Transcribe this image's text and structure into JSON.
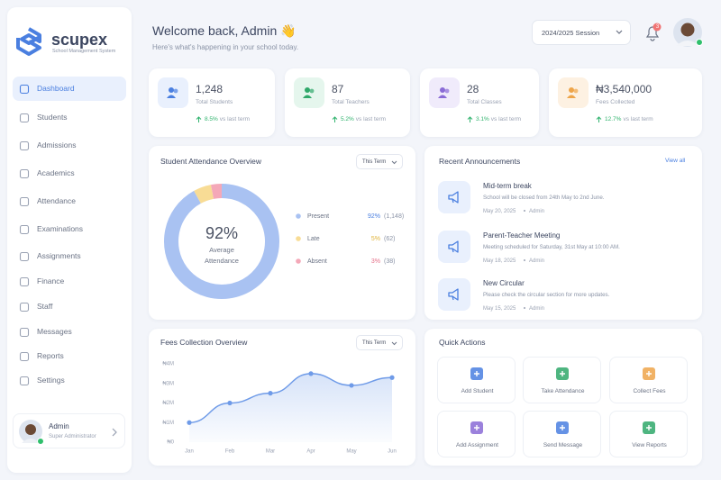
{
  "sidebar": {
    "brand": "scupex",
    "brand_subtitle": "School Management System",
    "nav": [
      "Dashboard",
      "Students",
      "Admissions",
      "Academics",
      "Attendance",
      "Examinations",
      "Assignments",
      "Finance",
      "Staff",
      "Messages",
      "Reports",
      "Settings"
    ],
    "active": 0,
    "user": {
      "name": "Admin",
      "role": "Super Administrator"
    }
  },
  "header": {
    "title": "Welcome back, Admin 👋",
    "subtitle": "Here's what's happening in your school today.",
    "session": "2024/2025 Session",
    "notifications": "3"
  },
  "stats": [
    {
      "value": "1,248",
      "label": "Total Students",
      "trend": "8.5%",
      "trend_text": "vs last term",
      "color": "#4a7fe0",
      "bg": "#e9f0fd"
    },
    {
      "value": "87",
      "label": "Total Teachers",
      "trend": "5.2%",
      "trend_text": "vs last term",
      "color": "#2fa86a",
      "bg": "#e5f6ed"
    },
    {
      "value": "28",
      "label": "Total Classes",
      "trend": "3.1%",
      "trend_text": "vs last term",
      "color": "#8a6bd6",
      "bg": "#f0ebfb"
    },
    {
      "value": "₦3,540,000",
      "label": "Fees Collected",
      "trend": "12.7%",
      "trend_text": "vs last term",
      "color": "#eea54a",
      "bg": "#fdf1e2"
    }
  ],
  "chart_data": [
    {
      "type": "pie",
      "title": "Student Attendance Overview",
      "filter": "This Term",
      "center_value": "92%",
      "center_label": "Average Attendance",
      "categories": [
        "Present",
        "Late",
        "Absent"
      ],
      "values": [
        92,
        5,
        3
      ],
      "value_labels": [
        "92%",
        "5%",
        "3%"
      ],
      "counts": [
        1148,
        62,
        38
      ],
      "count_labels": [
        "(1,148)",
        "(62)",
        "(38)"
      ],
      "colors": [
        "#a9c2f2",
        "#f8dc95",
        "#f4a8b8"
      ],
      "label_colors": [
        "#4a7fe0",
        "#e0b43c",
        "#e5718a"
      ]
    },
    {
      "type": "line",
      "title": "Fees Collection Overview",
      "filter": "This Term",
      "categories": [
        "Jan",
        "Feb",
        "Mar",
        "Apr",
        "May",
        "Jun"
      ],
      "series": [
        {
          "name": "Fees",
          "color": "#6f9be8",
          "values": [
            1000000,
            2000000,
            2500000,
            3500000,
            2900000,
            3300000
          ]
        }
      ],
      "ylim": [
        0,
        4000000
      ],
      "yticks": [
        {
          "value": 0,
          "label": "₦0"
        },
        {
          "value": 1000000,
          "label": "₦1M"
        },
        {
          "value": 2000000,
          "label": "₦2M"
        },
        {
          "value": 3000000,
          "label": "₦3M"
        },
        {
          "value": 4000000,
          "label": "₦4M"
        }
      ],
      "grid": false
    }
  ],
  "announcements": {
    "title": "Recent Announcements",
    "link": "View all",
    "items": [
      {
        "title": "Mid-term break",
        "body": "School will be closed from 24th May to 2nd June.",
        "date": "May 20, 2025",
        "author": "Admin"
      },
      {
        "title": "Parent-Teacher Meeting",
        "body": "Meeting scheduled for Saturday, 31st May at 10:00 AM.",
        "date": "May 18, 2025",
        "author": "Admin"
      },
      {
        "title": "New Circular",
        "body": "Please check the circular section for more updates.",
        "date": "May 15, 2025",
        "author": "Admin"
      }
    ]
  },
  "quick_actions": {
    "title": "Quick Actions",
    "items": [
      {
        "label": "Add Student",
        "color": "#4a7fe0"
      },
      {
        "label": "Take Attendance",
        "color": "#2fa86a"
      },
      {
        "label": "Collect Fees",
        "color": "#eea54a"
      },
      {
        "label": "Add Assignment",
        "color": "#8a6bd6"
      },
      {
        "label": "Send Message",
        "color": "#4a7fe0"
      },
      {
        "label": "View Reports",
        "color": "#2fa86a"
      }
    ]
  }
}
